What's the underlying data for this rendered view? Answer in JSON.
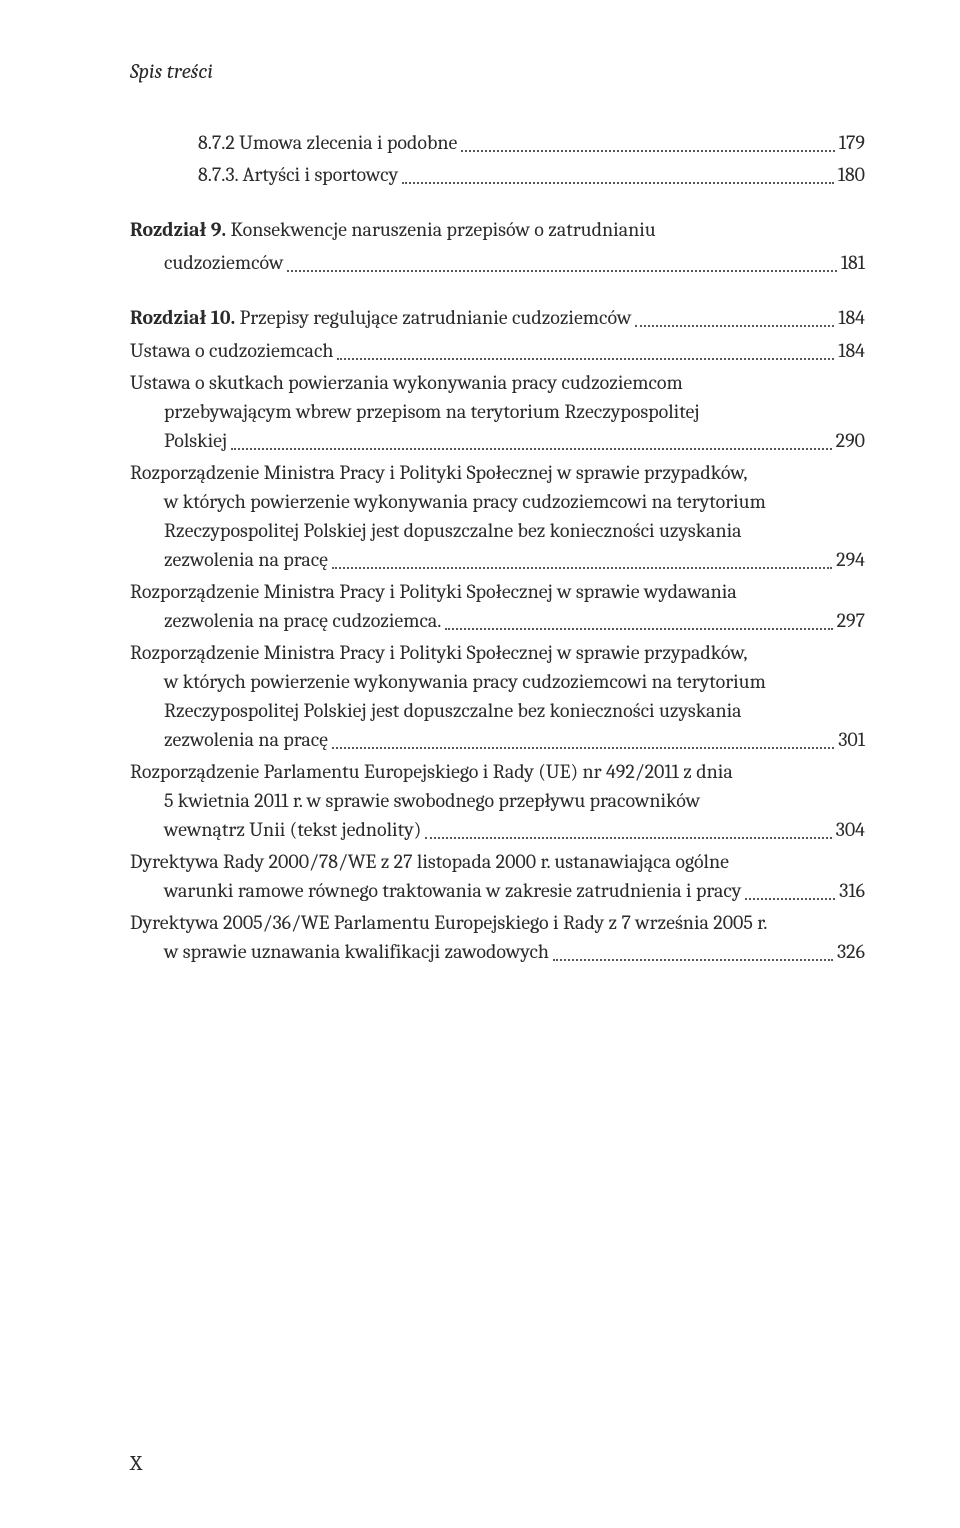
{
  "running_head": "Spis treści",
  "page_number": "X",
  "entries": [
    {
      "kind": "leaf",
      "level": 2,
      "label": "8.7.2  Umowa zlecenia i podobne",
      "page": "179"
    },
    {
      "kind": "leaf",
      "level": 2,
      "label": "8.7.3.  Artyści i sportowcy",
      "page": "180"
    },
    {
      "kind": "chapter",
      "run_in": "Rozdział 9. ",
      "title_lines": [
        "Konsekwencje naruszenia przepisów o zatrudnianiu"
      ],
      "last_line": "cudzoziemców",
      "page": "181"
    },
    {
      "kind": "chapter-oneline",
      "run_in": "Rozdział 10. ",
      "last_line": "Przepisy regulujące zatrudnianie cudzoziemców",
      "page": "184"
    },
    {
      "kind": "leaf",
      "level": 0,
      "label": "Ustawa o cudzoziemcach",
      "page": "184"
    },
    {
      "kind": "multi",
      "level": 0,
      "lines": [
        "Ustawa o skutkach powierzania wykonywania pracy cudzoziemcom",
        "przebywającym wbrew przepisom na terytorium Rzeczypospolitej"
      ],
      "last_line": "Polskiej",
      "page": "290"
    },
    {
      "kind": "multi",
      "level": 0,
      "lines": [
        "Rozporządzenie Ministra Pracy i Polityki Społecznej w sprawie przypadków,",
        "w których powierzenie wykonywania pracy cudzoziemcowi na terytorium",
        "Rzeczypospolitej Polskiej jest dopuszczalne bez konieczności uzyskania"
      ],
      "last_line": "zezwolenia na pracę",
      "page": "294"
    },
    {
      "kind": "multi",
      "level": 0,
      "lines": [
        "Rozporządzenie Ministra Pracy i Polityki Społecznej w sprawie wydawania"
      ],
      "last_line": "zezwolenia na pracę cudzoziemca.",
      "page": "297"
    },
    {
      "kind": "multi",
      "level": 0,
      "lines": [
        "Rozporządzenie Ministra Pracy i Polityki Społecznej w sprawie przypadków,",
        "w których powierzenie wykonywania pracy cudzoziemcowi na terytorium",
        "Rzeczypospolitej Polskiej jest dopuszczalne bez konieczności uzyskania"
      ],
      "last_line": "zezwolenia na pracę",
      "page": "301"
    },
    {
      "kind": "multi",
      "level": 0,
      "lines": [
        "Rozporządzenie Parlamentu Europejskiego i Rady (UE) nr 492/2011 z dnia",
        "5 kwietnia 2011 r. w sprawie swobodnego przepływu pracowników"
      ],
      "last_line": "wewnątrz Unii (tekst jednolity)",
      "page": "304"
    },
    {
      "kind": "multi",
      "level": 0,
      "lines": [
        "Dyrektywa Rady 2000/78/WE z 27 listopada 2000 r. ustanawiająca ogólne"
      ],
      "last_line": "warunki ramowe równego traktowania w zakresie zatrudnienia i pracy",
      "page": "316"
    },
    {
      "kind": "multi",
      "level": 0,
      "lines": [
        "Dyrektywa 2005/36/WE Parlamentu Europejskiego i Rady z 7 września 2005 r."
      ],
      "last_line": "w sprawie uznawania kwalifikacji zawodowych",
      "page": "326"
    }
  ]
}
